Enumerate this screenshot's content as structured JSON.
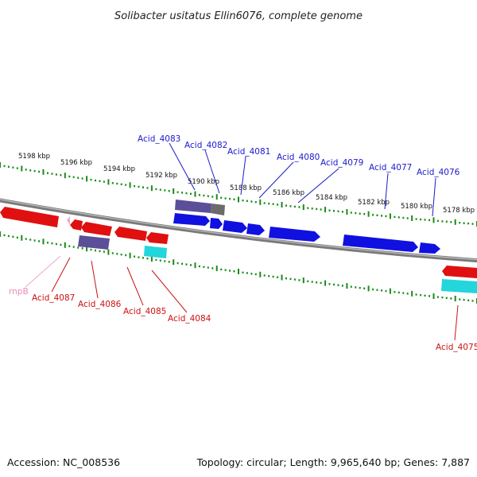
{
  "title": "Solibacter usitatus Ellin6076, complete genome",
  "footer": {
    "accession": "Accession: NC_008536",
    "summary": "Topology: circular; Length: 9,965,640 bp; Genes: 7,887"
  },
  "kbp_labels": [
    "5198 kbp",
    "5196 kbp",
    "5194 kbp",
    "5192 kbp",
    "5190 kbp",
    "5188 kbp",
    "5186 kbp",
    "5184 kbp",
    "5182 kbp",
    "5180 kbp",
    "5178 kbp"
  ],
  "gene_labels_forward": [
    "Acid_4083",
    "Acid_4082",
    "Acid_4081",
    "Acid_4080",
    "Acid_4079",
    "Acid_4077",
    "Acid_4076"
  ],
  "gene_labels_reverse": [
    "rnpB",
    "Acid_4087",
    "Acid_4086",
    "Acid_4085",
    "Acid_4084",
    "Acid_4075"
  ],
  "colors": {
    "forward_gene": "#1010e0",
    "reverse_gene": "#e01010",
    "cds_purple": "#5a4f98",
    "cds_gray": "#6b6b6b",
    "cyan": "#22d6dc",
    "rna_pink": "#f0a8c8",
    "backbone": "#8a8a8a",
    "ruler": "#1a8a1a"
  }
}
